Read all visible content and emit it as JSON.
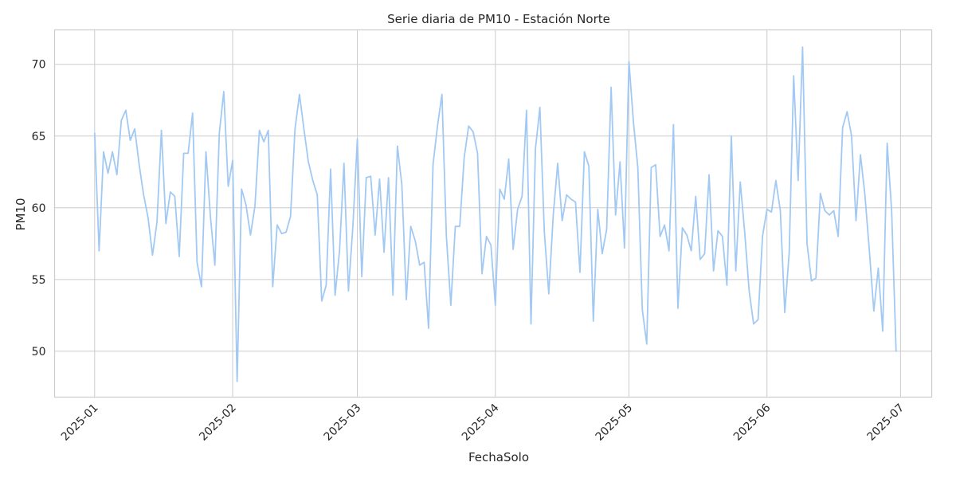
{
  "chart_data": {
    "type": "line",
    "title": "Serie diaria de PM10 - Estación Norte",
    "xlabel": "FechaSolo",
    "ylabel": "PM10",
    "x_ticks": [
      "2025-01",
      "2025-02",
      "2025-03",
      "2025-04",
      "2025-05",
      "2025-06",
      "2025-07"
    ],
    "y_ticks": [
      50,
      55,
      60,
      65,
      70
    ],
    "xlim": [
      "2024-12-23",
      "2025-07-08"
    ],
    "ylim": [
      46.8,
      72.4
    ],
    "grid": true,
    "color": "#a1c9f4",
    "x_start": "2025-01-01",
    "x_end": "2025-06-30",
    "values": [
      65.2,
      57.0,
      63.9,
      62.4,
      63.9,
      62.3,
      66.1,
      66.8,
      64.7,
      65.5,
      63.0,
      60.9,
      59.3,
      56.7,
      59.0,
      65.4,
      58.9,
      61.1,
      60.8,
      56.6,
      63.8,
      63.8,
      66.6,
      56.2,
      54.5,
      63.9,
      59.4,
      56.0,
      65.2,
      68.1,
      61.5,
      63.3,
      47.9,
      61.3,
      60.2,
      58.1,
      60.1,
      65.4,
      64.6,
      65.4,
      54.5,
      58.8,
      58.2,
      58.3,
      59.4,
      65.5,
      67.9,
      65.5,
      63.2,
      61.9,
      60.9,
      53.5,
      54.6,
      62.7,
      53.9,
      57.0,
      63.1,
      54.2,
      58.7,
      64.8,
      55.2,
      62.1,
      62.2,
      58.1,
      62.0,
      56.9,
      62.1,
      53.9,
      64.3,
      61.6,
      53.6,
      58.7,
      57.7,
      56.0,
      56.2,
      51.6,
      63.0,
      65.7,
      67.9,
      58.0,
      53.2,
      58.7,
      58.7,
      63.5,
      65.7,
      65.3,
      63.8,
      55.4,
      58.0,
      57.4,
      53.2,
      61.3,
      60.6,
      63.4,
      57.1,
      59.9,
      60.8,
      66.8,
      51.9,
      64.1,
      67.0,
      58.3,
      54.0,
      59.5,
      63.1,
      59.1,
      60.9,
      60.6,
      60.4,
      55.5,
      63.9,
      62.9,
      52.1,
      59.9,
      56.8,
      58.5,
      68.4,
      59.5,
      63.2,
      57.2,
      70.2,
      66.0,
      62.8,
      52.9,
      50.5,
      62.8,
      63.0,
      58.0,
      58.8,
      57.0,
      65.8,
      53.0,
      58.6,
      58.1,
      57.0,
      60.8,
      56.4,
      56.8,
      62.3,
      55.6,
      58.4,
      58.0,
      54.6,
      65.0,
      55.6,
      61.8,
      58.3,
      54.2,
      51.9,
      52.2,
      58.0,
      59.9,
      59.7,
      61.9,
      59.8,
      52.7,
      56.9,
      69.2,
      61.9,
      71.2,
      57.5,
      54.9,
      55.1,
      61.0,
      59.8,
      59.5,
      59.8,
      58.0,
      65.6,
      66.7,
      65.0,
      59.1,
      63.7,
      60.9,
      57.0,
      52.8,
      55.8,
      51.4,
      64.5,
      59.8,
      50.0
    ]
  }
}
